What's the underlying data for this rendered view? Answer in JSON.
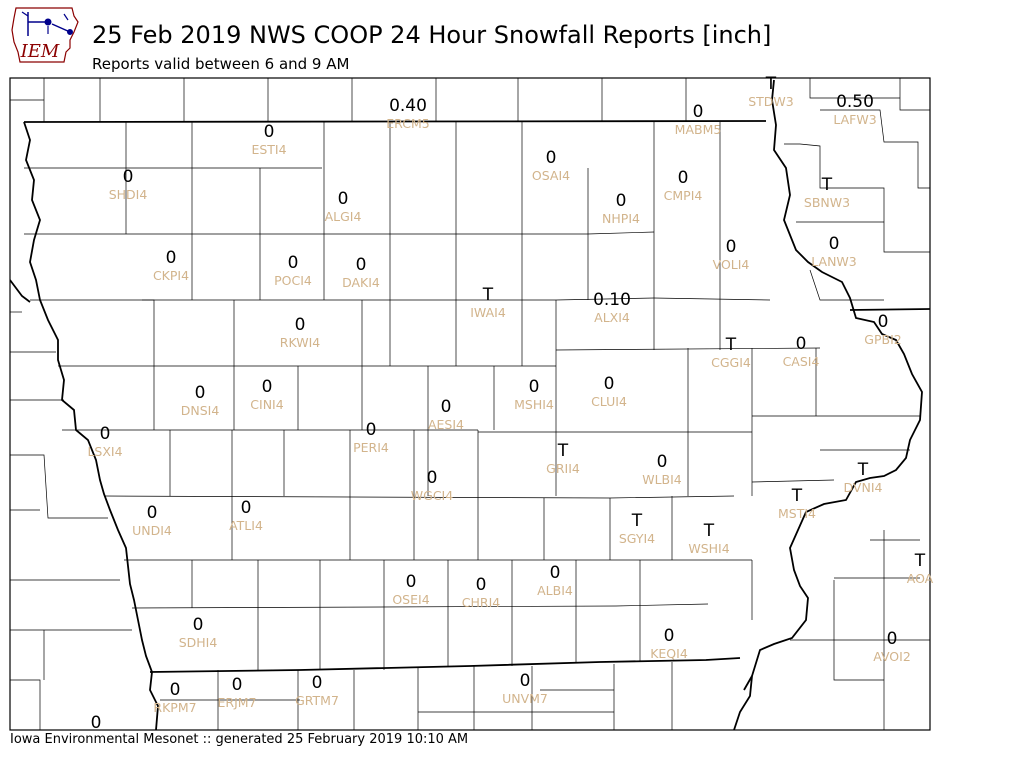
{
  "header": {
    "title": "25 Feb 2019 NWS COOP 24 Hour Snowfall Reports [inch]",
    "subtitle": "Reports valid between 6 and 9 AM",
    "logo_text": "IEM"
  },
  "footer": {
    "text": "Iowa Environmental Mesonet :: generated 25 February 2019 10:10 AM"
  },
  "colors": {
    "station_label": "#d2b48c",
    "value_text": "#000000",
    "logo_accent": "#00008b",
    "logo_text": "#8b0000"
  },
  "map": {
    "stations": [
      {
        "id": "ERCM5",
        "value": "0.40"
      },
      {
        "id": "STDW3",
        "value": "T"
      },
      {
        "id": "LAFW3",
        "value": "0.50"
      },
      {
        "id": "MABM5",
        "value": "0"
      },
      {
        "id": "ESTI4",
        "value": "0"
      },
      {
        "id": "OSAI4",
        "value": "0"
      },
      {
        "id": "SHDI4",
        "value": "0"
      },
      {
        "id": "ALGI4",
        "value": "0"
      },
      {
        "id": "NHPI4",
        "value": "0"
      },
      {
        "id": "CMPI4",
        "value": "0"
      },
      {
        "id": "SBNW3",
        "value": "T"
      },
      {
        "id": "VOLI4",
        "value": "0"
      },
      {
        "id": "LANW3",
        "value": "0"
      },
      {
        "id": "CKPI4",
        "value": "0"
      },
      {
        "id": "POCI4",
        "value": "0"
      },
      {
        "id": "DAKI4",
        "value": "0"
      },
      {
        "id": "IWAI4",
        "value": "T"
      },
      {
        "id": "ALXI4",
        "value": "0.10"
      },
      {
        "id": "RKWI4",
        "value": "0"
      },
      {
        "id": "GPBI2",
        "value": "0"
      },
      {
        "id": "CGGI4",
        "value": "T"
      },
      {
        "id": "CASI4",
        "value": "0"
      },
      {
        "id": "DNSI4",
        "value": "0"
      },
      {
        "id": "CINI4",
        "value": "0"
      },
      {
        "id": "MSHI4",
        "value": "0"
      },
      {
        "id": "CLUI4",
        "value": "0"
      },
      {
        "id": "AESI4",
        "value": "0"
      },
      {
        "id": "LSXI4",
        "value": "0"
      },
      {
        "id": "PERI4",
        "value": "0"
      },
      {
        "id": "GRII4",
        "value": "T"
      },
      {
        "id": "WLBI4",
        "value": "0"
      },
      {
        "id": "DVNI4",
        "value": "T"
      },
      {
        "id": "WGCI4",
        "value": "0"
      },
      {
        "id": "UNDI4",
        "value": "0"
      },
      {
        "id": "ATLI4",
        "value": "0"
      },
      {
        "id": "SGYI4",
        "value": "T"
      },
      {
        "id": "WSHI4",
        "value": "T"
      },
      {
        "id": "MSTI4",
        "value": "T"
      },
      {
        "id": "AOA",
        "value": "T"
      },
      {
        "id": "OSEI4",
        "value": "0"
      },
      {
        "id": "CHRI4",
        "value": "0"
      },
      {
        "id": "ALBI4",
        "value": "0"
      },
      {
        "id": "SDHI4",
        "value": "0"
      },
      {
        "id": "KEQI4",
        "value": "0"
      },
      {
        "id": "AVOI2",
        "value": "0"
      },
      {
        "id": "RKPM7",
        "value": "0"
      },
      {
        "id": "ERJM7",
        "value": "0"
      },
      {
        "id": "GRTM7",
        "value": "0"
      },
      {
        "id": "UNVM7",
        "value": "0"
      },
      {
        "id": "",
        "value": "0"
      }
    ]
  }
}
